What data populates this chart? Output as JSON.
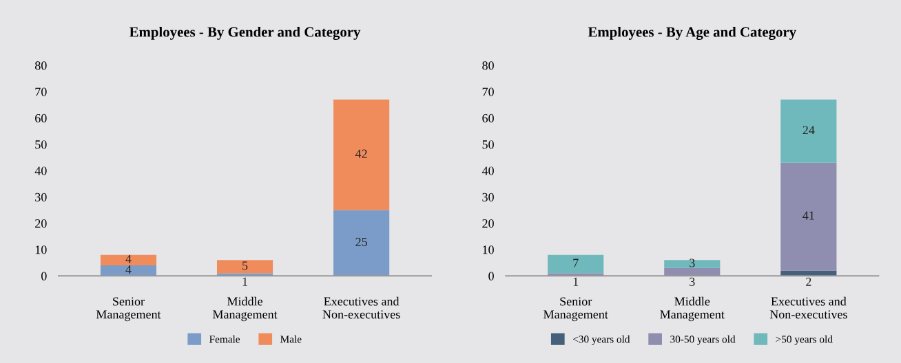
{
  "chart_data": [
    {
      "type": "bar",
      "title": "Employees - By Gender and Category",
      "stacked": true,
      "categories": [
        "Senior\nManagement",
        "Middle\nManagement",
        "Executives and\nNon-executives"
      ],
      "ylim": [
        0,
        80
      ],
      "yticks": [
        0,
        10,
        20,
        30,
        40,
        50,
        60,
        70,
        80
      ],
      "grid": false,
      "legend": "bottom",
      "series": [
        {
          "name": "Female",
          "color": "#7b9cc8",
          "values": [
            4,
            1,
            25
          ],
          "value_labels": [
            "4",
            "1",
            "25"
          ]
        },
        {
          "name": "Male",
          "color": "#f08c5c",
          "values": [
            4,
            5,
            42
          ],
          "value_labels": [
            "4",
            "5",
            "42"
          ]
        }
      ]
    },
    {
      "type": "bar",
      "title": "Employees - By Age and Category",
      "stacked": true,
      "categories": [
        "Senior\nManagement",
        "Middle\nManagement",
        "Executives and\nNon-executives"
      ],
      "ylim": [
        0,
        80
      ],
      "yticks": [
        0,
        10,
        20,
        30,
        40,
        50,
        60,
        70,
        80
      ],
      "grid": false,
      "legend": "bottom",
      "series": [
        {
          "name": "<30 years old",
          "color": "#45607a",
          "values": [
            0,
            0,
            2
          ],
          "value_labels": [
            null,
            null,
            "2"
          ]
        },
        {
          "name": "30-50 years old",
          "color": "#8f8db0",
          "values": [
            1,
            3,
            41
          ],
          "value_labels": [
            "1",
            "3",
            "41"
          ]
        },
        {
          "name": ">50 years old",
          "color": "#6fb8bb",
          "values": [
            7,
            3,
            24
          ],
          "value_labels": [
            "7",
            "3",
            "24"
          ]
        }
      ]
    }
  ]
}
